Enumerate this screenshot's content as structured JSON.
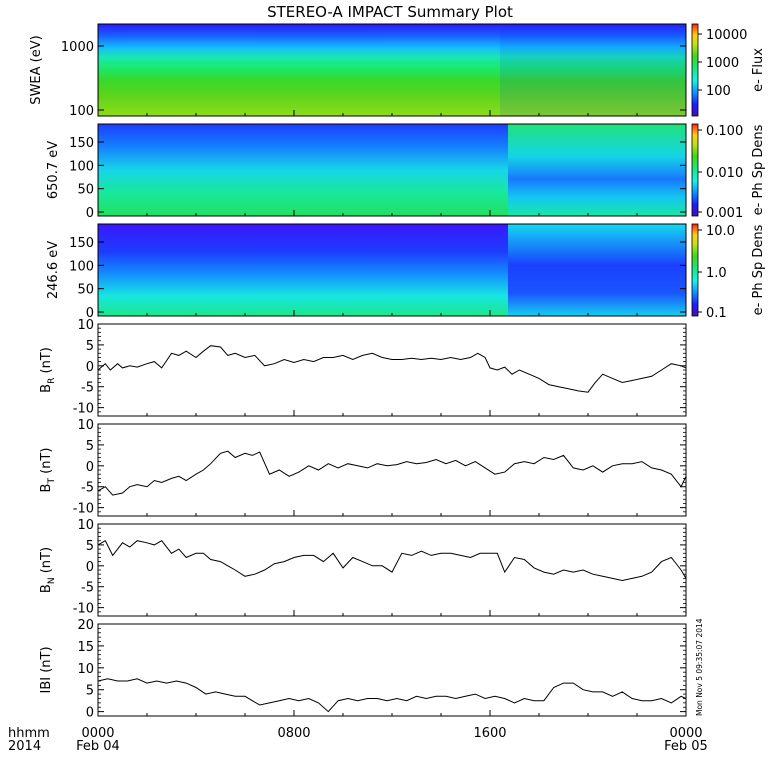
{
  "title": "STEREO-A IMPACT Summary Plot",
  "timestamp": "Mon Nov  5 09:35:07 2014",
  "bottom_left": [
    "hhmm",
    "2014"
  ],
  "colors": {
    "colormap": [
      "#4b0fb2",
      "#1d1cff",
      "#0f8dff",
      "#16f0ee",
      "#18e87c",
      "#42d61d",
      "#c3e014",
      "#ffcf12",
      "#ff6f10",
      "#ff1a0a"
    ]
  },
  "chart_data": [
    {
      "type": "heatmap",
      "ylabel": "SWEA (eV)",
      "yscale": "log",
      "yticks": [
        "100",
        "1000"
      ],
      "colorbar_label": "e- Flux",
      "colorbar_ticks": [
        "100",
        "1000",
        "10000"
      ],
      "colorbar_scale": "log"
    },
    {
      "type": "heatmap",
      "ylabel": "650.7 eV",
      "ylim": [
        0,
        180
      ],
      "yticks": [
        "0",
        "50",
        "100",
        "150"
      ],
      "colorbar_label": "e- Ph Sp Dens",
      "colorbar_ticks": [
        "0.001",
        "0.010",
        "0.100"
      ],
      "colorbar_scale": "log"
    },
    {
      "type": "heatmap",
      "ylabel": "246.6 eV",
      "ylim": [
        0,
        180
      ],
      "yticks": [
        "0",
        "50",
        "100",
        "150"
      ],
      "colorbar_label": "e- Ph Sp Dens",
      "colorbar_ticks": [
        "0.1",
        "1.0",
        "10.0"
      ],
      "colorbar_scale": "log"
    },
    {
      "type": "line",
      "ylabel_main": "B",
      "ylabel_sub": "R",
      "ylabel_unit": "(nT)",
      "ylim": [
        -12,
        10
      ],
      "yticks": [
        "-10",
        "-5",
        "0",
        "5",
        "10"
      ],
      "x_hours": [
        0,
        0.3,
        0.5,
        0.8,
        1,
        1.3,
        1.6,
        2,
        2.3,
        2.6,
        3,
        3.3,
        3.6,
        4,
        4.3,
        4.6,
        5,
        5.3,
        5.6,
        6,
        6.4,
        6.8,
        7.2,
        7.6,
        8,
        8.4,
        8.8,
        9.2,
        9.6,
        10,
        10.4,
        10.8,
        11.2,
        11.6,
        12,
        12.4,
        12.8,
        13.2,
        13.6,
        14,
        14.4,
        14.8,
        15.2,
        15.5,
        15.8,
        16,
        16.3,
        16.6,
        16.9,
        17.2,
        17.6,
        18,
        18.4,
        18.8,
        19.2,
        19.6,
        20,
        20.3,
        20.6,
        21,
        21.4,
        21.8,
        22.2,
        22.6,
        23,
        23.4,
        23.8,
        24
      ],
      "y": [
        -1,
        0.5,
        -1,
        0.5,
        -0.5,
        0,
        -0.3,
        0.5,
        1,
        -0.5,
        3,
        2.5,
        3.5,
        2,
        3.5,
        4.8,
        4.5,
        2.5,
        3,
        2,
        2.5,
        0,
        0.5,
        1.5,
        0.8,
        1.5,
        1,
        2,
        2,
        2.5,
        1.5,
        2.5,
        3,
        2,
        1.5,
        1.5,
        1.8,
        1.5,
        1.8,
        1.5,
        2,
        1.5,
        2,
        3,
        2,
        -0.5,
        -1,
        -0.3,
        -2,
        -1,
        -2,
        -3,
        -4.5,
        -5,
        -5.5,
        -6,
        -6.3,
        -4,
        -2,
        -3,
        -4,
        -3.5,
        -3,
        -2.5,
        -1,
        0.5,
        0,
        -0.5
      ]
    },
    {
      "type": "line",
      "ylabel_main": "B",
      "ylabel_sub": "T",
      "ylabel_unit": "(nT)",
      "ylim": [
        -12,
        10
      ],
      "yticks": [
        "-10",
        "-5",
        "0",
        "5",
        "10"
      ],
      "x_hours": [
        0,
        0.3,
        0.6,
        1,
        1.3,
        1.6,
        2,
        2.3,
        2.6,
        3,
        3.3,
        3.6,
        4,
        4.3,
        4.6,
        5,
        5.3,
        5.6,
        6,
        6.3,
        6.6,
        7,
        7.4,
        7.8,
        8.2,
        8.6,
        9,
        9.4,
        9.8,
        10.2,
        10.6,
        11,
        11.4,
        11.8,
        12.2,
        12.6,
        13,
        13.4,
        13.8,
        14.2,
        14.6,
        15,
        15.4,
        15.8,
        16.2,
        16.6,
        17,
        17.4,
        17.8,
        18.2,
        18.6,
        19,
        19.4,
        19.8,
        20.2,
        20.6,
        21,
        21.4,
        21.8,
        22.2,
        22.6,
        23,
        23.4,
        23.8,
        24
      ],
      "y": [
        -6,
        -5,
        -7,
        -6.5,
        -5,
        -4.5,
        -5,
        -3.5,
        -4,
        -3,
        -2.5,
        -3.5,
        -2,
        -1,
        0.5,
        3,
        3.5,
        2,
        3,
        2.5,
        3.3,
        -2,
        -1,
        -2.5,
        -1.5,
        0,
        -1,
        0.5,
        -0.5,
        0.5,
        0,
        -0.5,
        0.5,
        0,
        0.3,
        1,
        0.5,
        0.8,
        1.5,
        0.5,
        1.3,
        0,
        1,
        -0.5,
        -2,
        -1.5,
        0.5,
        1,
        0.5,
        2,
        1.5,
        2.5,
        -0.5,
        -1,
        0,
        -1.5,
        0,
        0.5,
        0.5,
        1,
        -0.5,
        -1,
        -2,
        -5,
        -2.5
      ]
    },
    {
      "type": "line",
      "ylabel_main": "B",
      "ylabel_sub": "N",
      "ylabel_unit": "(nT)",
      "ylim": [
        -12,
        10
      ],
      "yticks": [
        "-10",
        "-5",
        "0",
        "5",
        "10"
      ],
      "x_hours": [
        0,
        0.3,
        0.6,
        1,
        1.3,
        1.6,
        2,
        2.3,
        2.6,
        3,
        3.3,
        3.6,
        4,
        4.3,
        4.6,
        5,
        5.3,
        5.6,
        6,
        6.4,
        6.8,
        7.2,
        7.6,
        8,
        8.4,
        8.8,
        9.2,
        9.6,
        10,
        10.4,
        10.8,
        11.2,
        11.6,
        12,
        12.4,
        12.8,
        13.2,
        13.6,
        14,
        14.4,
        14.8,
        15.2,
        15.6,
        16,
        16.3,
        16.6,
        17,
        17.4,
        17.8,
        18.2,
        18.6,
        19,
        19.4,
        19.8,
        20.2,
        20.6,
        21,
        21.4,
        21.8,
        22.2,
        22.6,
        23,
        23.4,
        23.8,
        24
      ],
      "y": [
        5,
        6,
        2.5,
        5.5,
        4.5,
        6,
        5.5,
        5,
        6,
        3,
        4,
        2,
        3,
        3,
        1.5,
        1,
        0,
        -1,
        -2.5,
        -2,
        -1,
        0.5,
        1,
        2,
        2.5,
        2.5,
        1,
        3,
        -0.5,
        2,
        1,
        0,
        0,
        -1.5,
        3,
        2.5,
        3.5,
        2.5,
        3,
        3,
        2.5,
        2,
        3,
        3,
        3,
        -1.5,
        2,
        1.5,
        -0.5,
        -1.5,
        -2,
        -1,
        -1.5,
        -1,
        -2,
        -2.5,
        -3,
        -3.5,
        -3,
        -2.5,
        -1.5,
        1,
        2,
        -1,
        -3
      ]
    },
    {
      "type": "line",
      "ylabel": "IBI (nT)",
      "ylim": [
        -1,
        20
      ],
      "yticks": [
        "0",
        "5",
        "10",
        "15",
        "20"
      ],
      "x_hours": [
        0,
        0.4,
        0.8,
        1.2,
        1.6,
        2,
        2.4,
        2.8,
        3.2,
        3.6,
        4,
        4.4,
        4.8,
        5.2,
        5.6,
        6,
        6.3,
        6.6,
        7,
        7.4,
        7.8,
        8.2,
        8.6,
        9,
        9.4,
        9.8,
        10.2,
        10.6,
        11,
        11.4,
        11.8,
        12.2,
        12.6,
        13,
        13.4,
        13.8,
        14.2,
        14.6,
        15,
        15.4,
        15.8,
        16.2,
        16.6,
        17,
        17.4,
        17.8,
        18.2,
        18.6,
        19,
        19.4,
        19.8,
        20.2,
        20.6,
        21,
        21.4,
        21.8,
        22.2,
        22.6,
        23,
        23.4,
        23.8,
        24
      ],
      "y": [
        7,
        7.5,
        7,
        7,
        7.5,
        6.5,
        7,
        6.5,
        7,
        6.5,
        5.5,
        4,
        4.5,
        4,
        3.5,
        3.5,
        2.5,
        1.5,
        2,
        2.5,
        3,
        2.5,
        3,
        2,
        0,
        2.5,
        3,
        2.5,
        3,
        3,
        2.5,
        3,
        2.5,
        3.5,
        3,
        3.5,
        3.5,
        3,
        3.5,
        4,
        3,
        3.5,
        3,
        2,
        3,
        2.5,
        2.5,
        5.5,
        6.5,
        6.5,
        5,
        4.5,
        4.5,
        3.5,
        4.5,
        3,
        2.5,
        2.5,
        3,
        2,
        3.5,
        3
      ]
    }
  ],
  "x_axis": {
    "ticks": [
      {
        "hour": 0,
        "label": "0000",
        "date": "Feb 04"
      },
      {
        "hour": 8,
        "label": "0800",
        "date": ""
      },
      {
        "hour": 16,
        "label": "1600",
        "date": ""
      },
      {
        "hour": 24,
        "label": "0000",
        "date": "Feb 05"
      }
    ]
  }
}
